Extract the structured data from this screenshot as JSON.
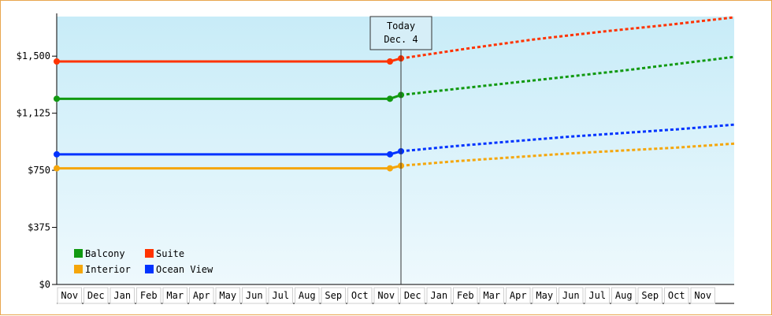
{
  "chart_data": {
    "type": "line",
    "y_ticks": [
      "$0",
      "$375",
      "$750",
      "$1,125",
      "$1,500"
    ],
    "y_tick_values": [
      0,
      375,
      750,
      1125,
      1500
    ],
    "ylim": [
      0,
      1760
    ],
    "x_months": [
      "Nov",
      "Dec",
      "Jan",
      "Feb",
      "Mar",
      "Apr",
      "May",
      "Jun",
      "Jul",
      "Aug",
      "Sep",
      "Oct",
      "Nov",
      "Dec",
      "Jan",
      "Feb",
      "Mar",
      "Apr",
      "May",
      "Jun",
      "Jul",
      "Aug",
      "Sep",
      "Oct",
      "Nov"
    ],
    "today_label": [
      "Today",
      "Dec. 4"
    ],
    "grid": false,
    "legend_position": "bottom-left",
    "series": [
      {
        "name": "Balcony",
        "color": "#119911",
        "history_value": 1220,
        "forecast": [
          1245,
          1285,
          1325,
          1365,
          1405,
          1450,
          1495
        ]
      },
      {
        "name": "Suite",
        "color": "#ff3300",
        "history_value": 1465,
        "forecast": [
          1485,
          1550,
          1610,
          1660,
          1705,
          1755
        ]
      },
      {
        "name": "Interior",
        "color": "#f5a60a",
        "history_value": 763,
        "forecast": [
          780,
          810,
          835,
          860,
          880,
          900,
          925
        ]
      },
      {
        "name": "Ocean View",
        "color": "#0033ff",
        "history_value": 855,
        "forecast": [
          875,
          910,
          940,
          970,
          995,
          1020,
          1050
        ]
      }
    ]
  }
}
